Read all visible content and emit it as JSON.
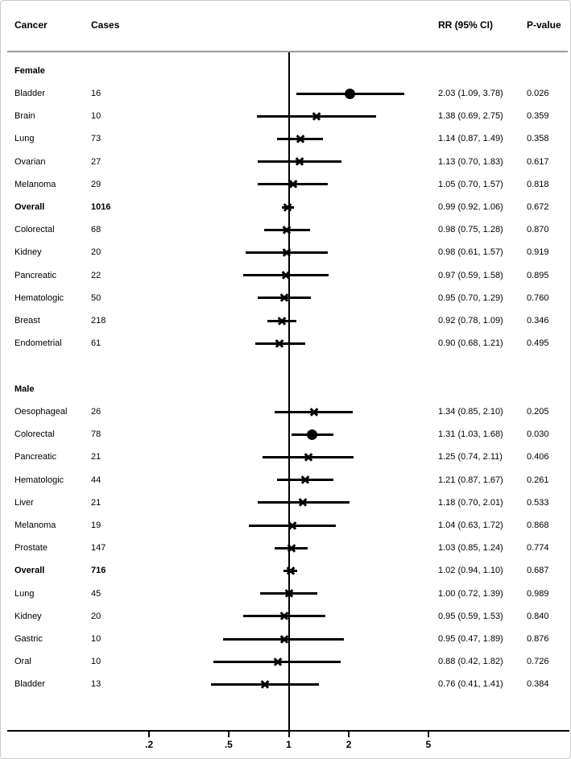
{
  "chart_data": {
    "type": "forest",
    "columns": {
      "cancer": "Cancer",
      "cases": "Cases",
      "rr_ci": "RR (95% CI)",
      "p": "P-value"
    },
    "x_axis": {
      "scale": "log",
      "ref_value": 1,
      "ticks": [
        {
          "label": ".2",
          "value": 0.2
        },
        {
          "label": ".5",
          "value": 0.5
        },
        {
          "label": "1",
          "value": 1
        },
        {
          "label": "2",
          "value": 2
        },
        {
          "label": "5",
          "value": 5
        }
      ]
    },
    "groups": [
      {
        "label": "Female",
        "rows": [
          {
            "cancer": "Bladder",
            "cases": "16",
            "rr": 2.03,
            "lo": 1.09,
            "hi": 3.78,
            "rr_text": "2.03 (1.09, 3.78)",
            "p": "0.026",
            "marker": "circle",
            "bold": false
          },
          {
            "cancer": "Brain",
            "cases": "10",
            "rr": 1.38,
            "lo": 0.69,
            "hi": 2.75,
            "rr_text": "1.38 (0.69, 2.75)",
            "p": "0.359",
            "marker": "x",
            "bold": false
          },
          {
            "cancer": "Lung",
            "cases": "73",
            "rr": 1.14,
            "lo": 0.87,
            "hi": 1.49,
            "rr_text": "1.14 (0.87, 1.49)",
            "p": "0.358",
            "marker": "x",
            "bold": false
          },
          {
            "cancer": "Ovarian",
            "cases": "27",
            "rr": 1.13,
            "lo": 0.7,
            "hi": 1.83,
            "rr_text": "1.13 (0.70, 1.83)",
            "p": "0.617",
            "marker": "x",
            "bold": false
          },
          {
            "cancer": "Melanoma",
            "cases": "29",
            "rr": 1.05,
            "lo": 0.7,
            "hi": 1.57,
            "rr_text": "1.05 (0.70, 1.57)",
            "p": "0.818",
            "marker": "x",
            "bold": false
          },
          {
            "cancer": "Overall",
            "cases": "1016",
            "rr": 0.99,
            "lo": 0.92,
            "hi": 1.06,
            "rr_text": "0.99 (0.92, 1.06)",
            "p": "0.672",
            "marker": "x",
            "bold": true
          },
          {
            "cancer": "Colorectal",
            "cases": "68",
            "rr": 0.98,
            "lo": 0.75,
            "hi": 1.28,
            "rr_text": "0.98 (0.75, 1.28)",
            "p": "0.870",
            "marker": "x",
            "bold": false
          },
          {
            "cancer": "Kidney",
            "cases": "20",
            "rr": 0.98,
            "lo": 0.61,
            "hi": 1.57,
            "rr_text": "0.98 (0.61, 1.57)",
            "p": "0.919",
            "marker": "x",
            "bold": false
          },
          {
            "cancer": "Pancreatic",
            "cases": "22",
            "rr": 0.97,
            "lo": 0.59,
            "hi": 1.58,
            "rr_text": "0.97 (0.59, 1.58)",
            "p": "0.895",
            "marker": "x",
            "bold": false
          },
          {
            "cancer": "Hematologic",
            "cases": "50",
            "rr": 0.95,
            "lo": 0.7,
            "hi": 1.29,
            "rr_text": "0.95 (0.70, 1.29)",
            "p": "0.760",
            "marker": "x",
            "bold": false
          },
          {
            "cancer": "Breast",
            "cases": "218",
            "rr": 0.92,
            "lo": 0.78,
            "hi": 1.09,
            "rr_text": "0.92 (0.78, 1.09)",
            "p": "0.346",
            "marker": "x",
            "bold": false
          },
          {
            "cancer": "Endometrial",
            "cases": "61",
            "rr": 0.9,
            "lo": 0.68,
            "hi": 1.21,
            "rr_text": "0.90 (0.68, 1.21)",
            "p": "0.495",
            "marker": "x",
            "bold": false
          }
        ]
      },
      {
        "label": "Male",
        "rows": [
          {
            "cancer": "Oesophageal",
            "cases": "26",
            "rr": 1.34,
            "lo": 0.85,
            "hi": 2.1,
            "rr_text": "1.34 (0.85, 2.10)",
            "p": "0.205",
            "marker": "x",
            "bold": false
          },
          {
            "cancer": "Colorectal",
            "cases": "78",
            "rr": 1.31,
            "lo": 1.03,
            "hi": 1.68,
            "rr_text": "1.31 (1.03, 1.68)",
            "p": "0.030",
            "marker": "circle",
            "bold": false
          },
          {
            "cancer": "Pancreatic",
            "cases": "21",
            "rr": 1.25,
            "lo": 0.74,
            "hi": 2.11,
            "rr_text": "1.25 (0.74, 2.11)",
            "p": "0.406",
            "marker": "x",
            "bold": false
          },
          {
            "cancer": "Hematologic",
            "cases": "44",
            "rr": 1.21,
            "lo": 0.87,
            "hi": 1.67,
            "rr_text": "1.21 (0.87, 1.67)",
            "p": "0.261",
            "marker": "x",
            "bold": false
          },
          {
            "cancer": "Liver",
            "cases": "21",
            "rr": 1.18,
            "lo": 0.7,
            "hi": 2.01,
            "rr_text": "1.18 (0.70, 2.01)",
            "p": "0.533",
            "marker": "x",
            "bold": false
          },
          {
            "cancer": "Melanoma",
            "cases": "19",
            "rr": 1.04,
            "lo": 0.63,
            "hi": 1.72,
            "rr_text": "1.04 (0.63, 1.72)",
            "p": "0.868",
            "marker": "x",
            "bold": false
          },
          {
            "cancer": "Prostate",
            "cases": "147",
            "rr": 1.03,
            "lo": 0.85,
            "hi": 1.24,
            "rr_text": "1.03 (0.85, 1.24)",
            "p": "0.774",
            "marker": "x",
            "bold": false
          },
          {
            "cancer": "Overall",
            "cases": "716",
            "rr": 1.02,
            "lo": 0.94,
            "hi": 1.1,
            "rr_text": "1.02 (0.94, 1.10)",
            "p": "0.687",
            "marker": "x",
            "bold": true
          },
          {
            "cancer": "Lung",
            "cases": "45",
            "rr": 1.0,
            "lo": 0.72,
            "hi": 1.39,
            "rr_text": "1.00 (0.72, 1.39)",
            "p": "0.989",
            "marker": "x",
            "bold": false
          },
          {
            "cancer": "Kidney",
            "cases": "20",
            "rr": 0.95,
            "lo": 0.59,
            "hi": 1.53,
            "rr_text": "0.95 (0.59, 1.53)",
            "p": "0.840",
            "marker": "x",
            "bold": false
          },
          {
            "cancer": "Gastric",
            "cases": "10",
            "rr": 0.95,
            "lo": 0.47,
            "hi": 1.89,
            "rr_text": "0.95 (0.47, 1.89)",
            "p": "0.876",
            "marker": "x",
            "bold": false
          },
          {
            "cancer": "Oral",
            "cases": "10",
            "rr": 0.88,
            "lo": 0.42,
            "hi": 1.82,
            "rr_text": "0.88 (0.42, 1.82)",
            "p": "0.726",
            "marker": "x",
            "bold": false
          },
          {
            "cancer": "Bladder",
            "cases": "13",
            "rr": 0.76,
            "lo": 0.41,
            "hi": 1.41,
            "rr_text": "0.76 (0.41, 1.41)",
            "p": "0.384",
            "marker": "x",
            "bold": false
          }
        ]
      }
    ],
    "colors": {
      "text": "#000000",
      "plot_elements": "#000000",
      "header_rule": "#9a9a9a",
      "figure_border": "#c9c9c9",
      "background": "#ffffff"
    }
  }
}
